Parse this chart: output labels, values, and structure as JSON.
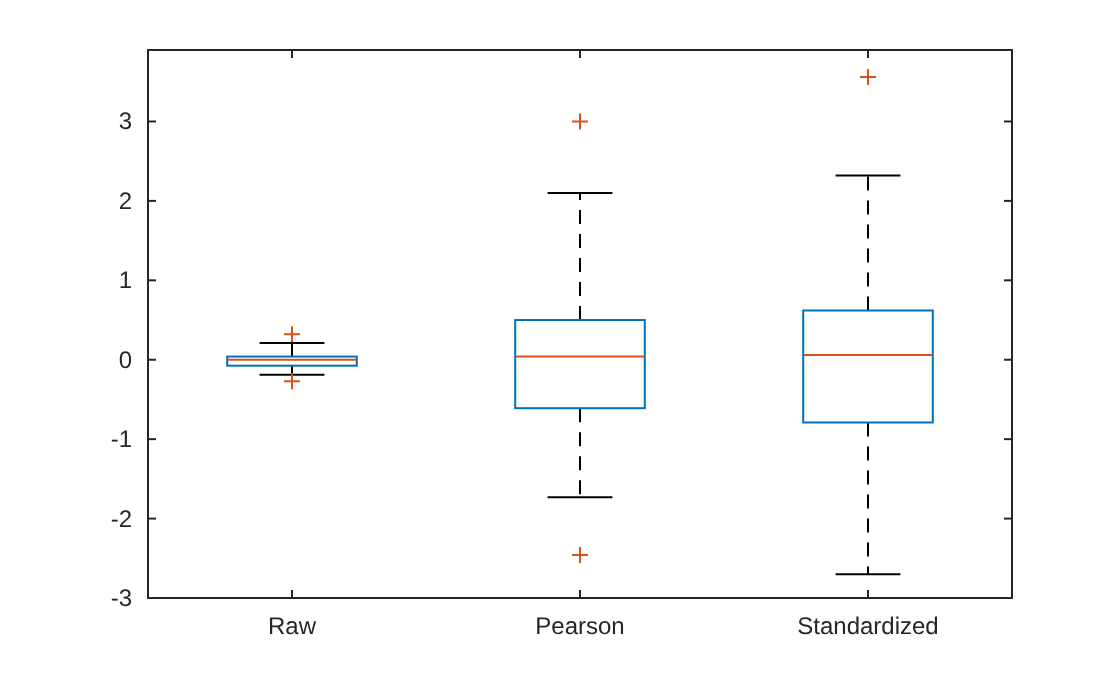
{
  "chart_data": {
    "type": "box",
    "categories": [
      "Raw",
      "Pearson",
      "Standardized"
    ],
    "color": "#0072bd",
    "ylim": [
      -3,
      3.9
    ],
    "yticks": [
      -3,
      -2,
      -1,
      0,
      1,
      2,
      3
    ],
    "line_style": "dashed",
    "marker": "cross",
    "grid": false,
    "boxes": [
      {
        "low": -0.19,
        "q1": -0.075,
        "median": 0.0,
        "q3": 0.04,
        "high": 0.21,
        "outliers": [
          0.32,
          -0.27
        ]
      },
      {
        "low": -1.73,
        "q1": -0.61,
        "median": 0.04,
        "q3": 0.5,
        "high": 2.1,
        "outliers": [
          3.0,
          -2.46
        ]
      },
      {
        "low": -2.7,
        "q1": -0.79,
        "median": 0.06,
        "q3": 0.62,
        "high": 2.32,
        "outliers": [
          3.56
        ]
      }
    ]
  }
}
